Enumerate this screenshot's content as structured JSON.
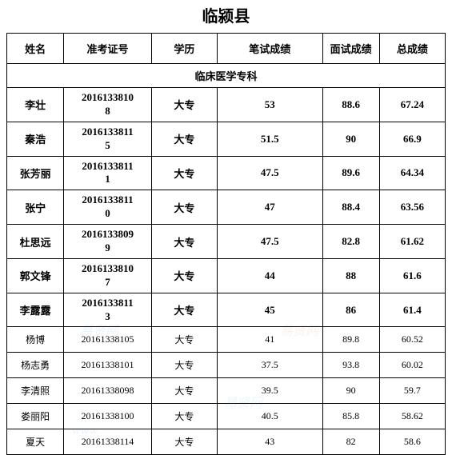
{
  "title": "临颍县",
  "headers": {
    "name": "姓名",
    "exam_id": "准考证号",
    "education": "学历",
    "written_score": "笔试成绩",
    "interview_score": "面试成绩",
    "total_score": "总成绩"
  },
  "section_title": "临床医学专科",
  "education_label": "大专",
  "rows": [
    {
      "name": "李壮",
      "id_line1": "2016133810",
      "id_line2": "8",
      "written": "53",
      "interview": "88.6",
      "total": "67.24",
      "bold": true
    },
    {
      "name": "秦浩",
      "id_line1": "2016133811",
      "id_line2": "5",
      "written": "51.5",
      "interview": "90",
      "total": "66.9",
      "bold": true
    },
    {
      "name": "张芳丽",
      "id_line1": "2016133811",
      "id_line2": "1",
      "written": "47.5",
      "interview": "89.6",
      "total": "64.34",
      "bold": true
    },
    {
      "name": "张宁",
      "id_line1": "2016133811",
      "id_line2": "0",
      "written": "47",
      "interview": "88.4",
      "total": "63.56",
      "bold": true
    },
    {
      "name": "杜思远",
      "id_line1": "2016133809",
      "id_line2": "9",
      "written": "47.5",
      "interview": "82.8",
      "total": "61.62",
      "bold": true
    },
    {
      "name": "郭文锋",
      "id_line1": "2016133810",
      "id_line2": "7",
      "written": "44",
      "interview": "88",
      "total": "61.6",
      "bold": true
    },
    {
      "name": "李露露",
      "id_line1": "2016133811",
      "id_line2": "3",
      "written": "45",
      "interview": "86",
      "total": "61.4",
      "bold": true
    },
    {
      "name": "杨博",
      "id_line1": "20161338105",
      "id_line2": "",
      "written": "41",
      "interview": "89.8",
      "total": "60.52",
      "bold": false
    },
    {
      "name": "杨志勇",
      "id_line1": "20161338101",
      "id_line2": "",
      "written": "37.5",
      "interview": "93.8",
      "total": "60.02",
      "bold": false
    },
    {
      "name": "李清照",
      "id_line1": "20161338098",
      "id_line2": "",
      "written": "39.5",
      "interview": "90",
      "total": "59.7",
      "bold": false
    },
    {
      "name": "娄丽阳",
      "id_line1": "20161338100",
      "id_line2": "",
      "written": "40.5",
      "interview": "85.8",
      "total": "58.62",
      "bold": false
    },
    {
      "name": "夏天",
      "id_line1": "20161338114",
      "id_line2": "",
      "written": "43",
      "interview": "82",
      "total": "58.6",
      "bold": false
    }
  ]
}
